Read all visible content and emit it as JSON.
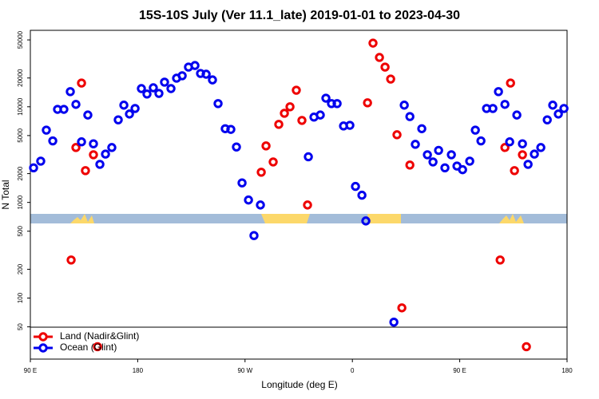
{
  "chart_data": {
    "type": "scatter",
    "title": "15S-10S July (Ver 11.1_late)   2019-01-01 to 2023-04-30",
    "x_label": "Longitude (deg E)",
    "y_label": "N Total",
    "log_y": true,
    "legend": "bottom-left",
    "xlim": [
      90,
      540
    ],
    "ylim": [
      23,
      63000
    ],
    "xticks": [
      {
        "value": 90,
        "label": "90 E"
      },
      {
        "value": 180,
        "label": "180"
      },
      {
        "value": 270,
        "label": "90 W"
      },
      {
        "value": 360,
        "label": "0"
      },
      {
        "value": 450,
        "label": "90 E"
      },
      {
        "value": 540,
        "label": "180"
      }
    ],
    "yticks": [
      50,
      100,
      200,
      500,
      1000,
      2000,
      5000,
      10000,
      20000,
      50000
    ],
    "series": [
      {
        "name": "Land (Nadir&Glint)",
        "color": "#ee0000",
        "x": [
          124.2,
          128.2,
          132.9,
          136.2,
          142.9,
          146.3,
          283.6,
          287.6,
          293.6,
          298.3,
          303,
          307.7,
          313,
          317.7,
          322.4,
          372.7,
          377.3,
          382.7,
          387.4,
          392.1,
          397.4,
          401.5,
          408.2,
          483.9,
          487.9,
          492.6,
          495.9,
          502.6,
          505.9
        ],
        "values": [
          250,
          3750,
          17700,
          2150,
          3150,
          31,
          2070,
          3900,
          2650,
          6550,
          8550,
          10000,
          14900,
          7200,
          940,
          11000,
          46300,
          32800,
          26000,
          19500,
          5100,
          79,
          2460,
          250,
          3750,
          17700,
          2150,
          3150,
          31
        ]
      },
      {
        "name": "Ocean (Glint)",
        "color": "#0000ee",
        "x": [
          92.7,
          98.7,
          103.4,
          108.8,
          112.8,
          118.1,
          123.5,
          128.2,
          132.9,
          138.2,
          142.9,
          148.3,
          153,
          158.3,
          163.7,
          168.4,
          173.1,
          177.8,
          183.1,
          187.8,
          193.1,
          197.8,
          202.5,
          207.9,
          212.6,
          217.3,
          222.6,
          228,
          232.7,
          237.4,
          242.7,
          247.4,
          253.4,
          258.1,
          262.8,
          267.5,
          272.9,
          277.5,
          282.9,
          323.1,
          327.8,
          333.1,
          337.8,
          342.5,
          347.2,
          352.6,
          357.9,
          362.6,
          368,
          371.3,
          394.8,
          403.5,
          408.2,
          412.8,
          418.2,
          422.9,
          427.6,
          432.3,
          437.6,
          443,
          447.7,
          452.4,
          458.4,
          463.1,
          467.8,
          472.5,
          477.8,
          482.5,
          487.9,
          491.9,
          497.9,
          502.6,
          507.3,
          512.6,
          518,
          523.4,
          528,
          532.7,
          537.4
        ],
        "values": [
          2300,
          2700,
          5700,
          4400,
          9400,
          9400,
          14400,
          10600,
          4300,
          8200,
          4100,
          2500,
          3200,
          3750,
          7300,
          10400,
          8400,
          9600,
          15500,
          13600,
          15800,
          13800,
          18100,
          15500,
          19900,
          21100,
          26000,
          27000,
          22300,
          21900,
          19100,
          10800,
          5900,
          5800,
          3800,
          1600,
          1060,
          450,
          940,
          3000,
          7800,
          8200,
          12300,
          10800,
          10800,
          6300,
          6400,
          1470,
          1190,
          640,
          56,
          10400,
          7900,
          4050,
          5900,
          3150,
          2650,
          3500,
          2300,
          3150,
          2400,
          2200,
          2700,
          5700,
          4400,
          9600,
          9600,
          14400,
          10600,
          4300,
          8200,
          4100,
          2500,
          3200,
          3750,
          7300,
          10400,
          8400,
          9600
        ]
      }
    ]
  }
}
